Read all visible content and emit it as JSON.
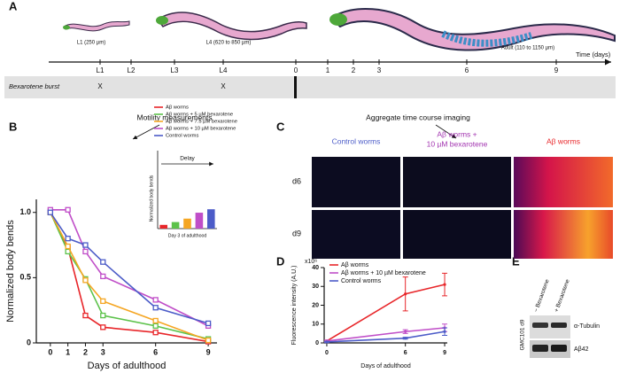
{
  "panels": {
    "a": "A",
    "b": "B",
    "c": "C",
    "d": "D",
    "e": "E"
  },
  "timeline": {
    "stages": [
      "L1 (250 µm)",
      "L4 (620 to 850 µm)",
      "Adult (110 to 1150 µm)"
    ],
    "ticks": [
      "L1",
      "L2",
      "L3",
      "L4",
      "0",
      "1",
      "2",
      "3",
      "6",
      "9"
    ],
    "axis_label": "Time (days)",
    "row_label": "Bexarotene burst",
    "markers": [
      "X",
      "X"
    ],
    "callouts": [
      "Motility measurements",
      "Aggregate time course imaging"
    ]
  },
  "chart_data": [
    {
      "type": "line",
      "x": [
        0,
        1,
        2,
        3,
        6,
        9
      ],
      "xlim": [
        -0.8,
        9.5
      ],
      "xticks": [
        0,
        1,
        2,
        3,
        6,
        9
      ],
      "ylim": [
        0,
        1.1
      ],
      "yticks": [
        0,
        0.5,
        {
          "value": 1,
          "label": "1.0"
        }
      ],
      "xlabel": "Days of adulthood",
      "ylabel": "Normalized body bends",
      "legend": "upper right",
      "marker": "square",
      "series": [
        {
          "name": "Aβ worms",
          "color": "#e8262a",
          "values": [
            1.0,
            0.73,
            0.21,
            0.12,
            0.08,
            0.01
          ]
        },
        {
          "name": "Aβ worms + 5 µM bexarotene",
          "color": "#5cc24a",
          "values": [
            1.0,
            0.7,
            0.49,
            0.21,
            0.13,
            0.03
          ]
        },
        {
          "name": "Aβ worms + 7.5 µM bexarotene",
          "color": "#f5a623",
          "values": [
            1.0,
            0.74,
            0.48,
            0.32,
            0.17,
            0.02
          ]
        },
        {
          "name": "Aβ worms + 10 µM bexarotene",
          "color": "#c04ec8",
          "values": [
            1.02,
            1.02,
            0.7,
            0.51,
            0.33,
            0.13
          ]
        },
        {
          "name": "Control worms",
          "color": "#4c5cc8",
          "values": [
            1.0,
            0.8,
            0.75,
            0.62,
            0.27,
            0.15
          ]
        }
      ]
    },
    {
      "type": "bar",
      "ylabel": "Normalized body bends",
      "xlabel": "Day 3 of adulthood",
      "annotation": "Delay",
      "categories": [
        null,
        null,
        null,
        null,
        null
      ],
      "values": [
        0.12,
        0.21,
        0.32,
        0.51,
        0.62
      ],
      "colors": [
        "#e8262a",
        "#5cc24a",
        "#f5a623",
        "#c04ec8",
        "#4c5cc8"
      ],
      "ylim": [
        0,
        2.5
      ]
    },
    {
      "type": "line",
      "x": [
        0,
        6,
        9
      ],
      "xlim": [
        -0.2,
        9.2
      ],
      "xticks": [
        0,
        6,
        9
      ],
      "ylim": [
        0,
        40
      ],
      "yticks": [
        0,
        10,
        20,
        30,
        40
      ],
      "scale_label": "x10⁶",
      "xlabel": "Days of adulthood",
      "ylabel": "Fluorescence intensity (A.U.)",
      "legend": "upper left",
      "marker": "circle",
      "series": [
        {
          "name": "Aβ worms",
          "color": "#e8262a",
          "values": [
            1,
            26,
            31
          ],
          "errors": [
            0.5,
            9,
            6
          ]
        },
        {
          "name": "Aβ worms + 10 µM bexarotene",
          "color": "#c04ec8",
          "values": [
            1,
            6,
            8
          ],
          "errors": [
            0.5,
            1,
            2
          ]
        },
        {
          "name": "Control worms",
          "color": "#4c5cc8",
          "values": [
            0.5,
            2.5,
            6
          ],
          "errors": [
            0.3,
            0.5,
            2
          ]
        }
      ]
    }
  ],
  "imaging": {
    "columns": [
      [
        "Control worms"
      ],
      [
        "Aβ worms +",
        "10 µM bexarotene"
      ],
      [
        "Aβ worms"
      ]
    ],
    "rows": [
      "d6",
      "d9"
    ]
  },
  "blot": {
    "lanes": [
      "− Bexarotene",
      "+ Bexarotene"
    ],
    "sample": "GMC101 d9",
    "bands": [
      "α-Tubulin",
      "Aβ42"
    ]
  }
}
